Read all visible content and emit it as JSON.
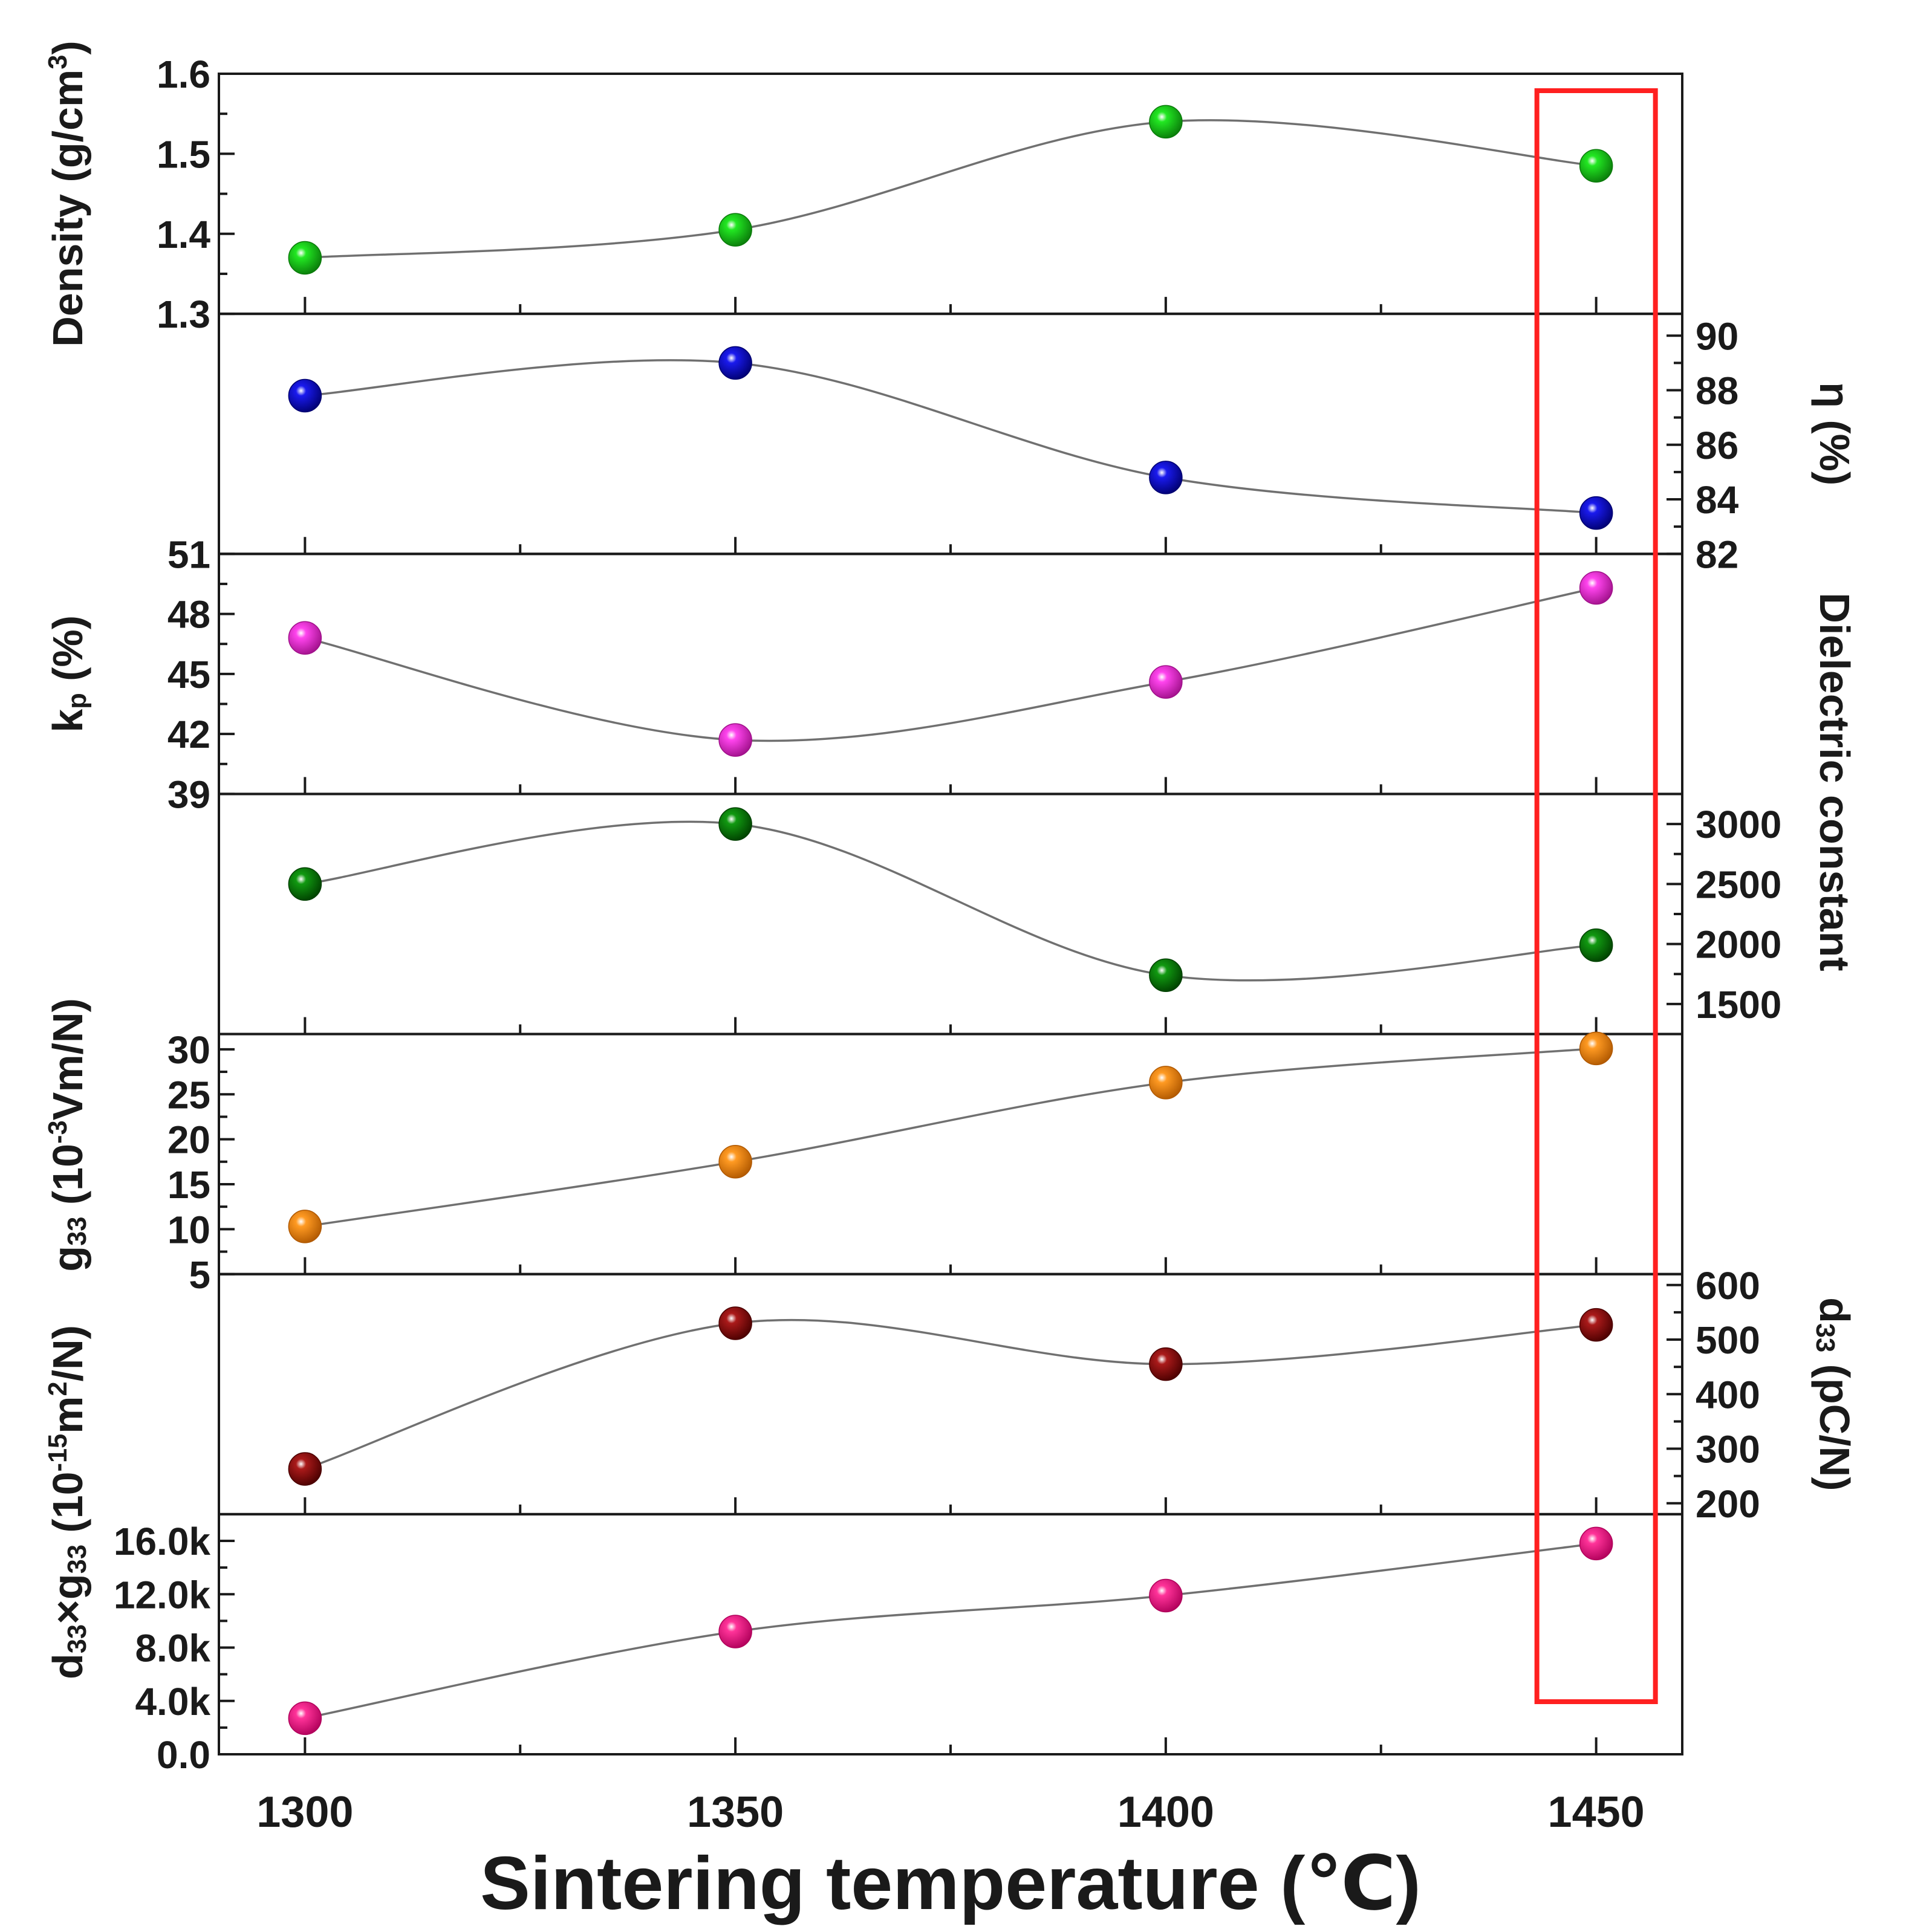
{
  "chart_data": {
    "type": "scatter",
    "x": [
      1300,
      1350,
      1400,
      1450
    ],
    "x_ticks": [
      "1300",
      "1350",
      "1400",
      "1450"
    ],
    "xlabel": "Sintering temperature (℃)",
    "xlim": [
      1290,
      1460
    ],
    "highlight": {
      "x": 1450,
      "color": "#ff2020"
    },
    "panels": [
      {
        "id": "density",
        "side": "left",
        "label_parts": [
          {
            "t": "Density (g/cm"
          },
          {
            "t": "3",
            "s": "sup"
          },
          {
            "t": ")"
          }
        ],
        "ylim": [
          1.3,
          1.6
        ],
        "ticks": [
          1.3,
          1.4,
          1.5,
          1.6
        ],
        "tick_labels": [
          "1.3",
          "1.4",
          "1.5",
          "1.6"
        ],
        "minor": [
          1.35,
          1.45,
          1.55
        ],
        "values": [
          1.37,
          1.405,
          1.54,
          1.485
        ],
        "color": "#22e822",
        "dark": "#0a7a0a"
      },
      {
        "id": "eta",
        "side": "right",
        "label_parts": [
          {
            "t": "η (%)"
          }
        ],
        "ylim": [
          82,
          90.8
        ],
        "ticks": [
          82,
          84,
          86,
          88,
          90
        ],
        "tick_labels": [
          "82",
          "84",
          "86",
          "88",
          "90"
        ],
        "minor": [
          83,
          85,
          87,
          89
        ],
        "values": [
          87.8,
          89,
          84.8,
          83.5
        ],
        "color": "#1a1aee",
        "dark": "#000070"
      },
      {
        "id": "kp",
        "side": "left",
        "label_parts": [
          {
            "t": "k"
          },
          {
            "t": "p",
            "s": "sub"
          },
          {
            "t": " (%)"
          }
        ],
        "ylim": [
          39,
          51
        ],
        "ticks": [
          39,
          42,
          45,
          48,
          51
        ],
        "tick_labels": [
          "39",
          "42",
          "45",
          "48",
          "51"
        ],
        "minor": [
          40.5,
          43.5,
          46.5,
          49.5
        ],
        "values": [
          46.8,
          41.7,
          44.6,
          49.3
        ],
        "color": "#ff44ee",
        "dark": "#a0108a"
      },
      {
        "id": "dielectric",
        "side": "right",
        "label_parts": [
          {
            "t": "Dielectric constant"
          }
        ],
        "label_center": "span",
        "ylim": [
          1250,
          3250
        ],
        "ticks": [
          1500,
          2000,
          2500,
          3000
        ],
        "tick_labels": [
          "1500",
          "2000",
          "2500",
          "3000"
        ],
        "minor": [
          1750,
          2250,
          2750
        ],
        "values": [
          2500,
          3000,
          1740,
          1990
        ],
        "color": "#119911",
        "dark": "#004000"
      },
      {
        "id": "g33",
        "side": "left",
        "label_parts": [
          {
            "t": "g"
          },
          {
            "t": "33",
            "s": "sub"
          },
          {
            "t": " (10"
          },
          {
            "t": "-3",
            "s": "sup"
          },
          {
            "t": "Vm/N)"
          }
        ],
        "label_center": "span",
        "ylim": [
          5,
          31.7
        ],
        "ticks": [
          5,
          10,
          15,
          20,
          25,
          30
        ],
        "tick_labels": [
          "5",
          "10",
          "15",
          "20",
          "25",
          "30"
        ],
        "minor": [
          7.5,
          12.5,
          17.5,
          22.5,
          27.5
        ],
        "values": [
          10.3,
          17.5,
          26.3,
          30.1
        ],
        "color": "#ff9a22",
        "dark": "#b05800"
      },
      {
        "id": "d33",
        "side": "right",
        "label_parts": [
          {
            "t": "d"
          },
          {
            "t": "33",
            "s": "sub"
          },
          {
            "t": " (pC/N)"
          }
        ],
        "ylim": [
          180,
          620
        ],
        "ticks": [
          200,
          300,
          400,
          500,
          600
        ],
        "tick_labels": [
          "200",
          "300",
          "400",
          "500",
          "600"
        ],
        "minor": [
          250,
          350,
          450,
          550
        ],
        "values": [
          263,
          530,
          455,
          527
        ],
        "color": "#aa1a1a",
        "dark": "#4a0000"
      },
      {
        "id": "fom",
        "side": "left",
        "label_parts": [
          {
            "t": "d"
          },
          {
            "t": "33",
            "s": "sub"
          },
          {
            "t": "×g"
          },
          {
            "t": "33",
            "s": "sub"
          },
          {
            "t": " (10"
          },
          {
            "t": "-15",
            "s": "sup"
          },
          {
            "t": "m"
          },
          {
            "t": "2",
            "s": "sup"
          },
          {
            "t": "/N)"
          }
        ],
        "label_center": "span",
        "ylim": [
          0,
          18000
        ],
        "ticks": [
          0,
          4000,
          8000,
          12000,
          16000
        ],
        "tick_labels": [
          "0.0",
          "4.0k",
          "8.0k",
          "12.0k",
          "16.0k"
        ],
        "minor": [
          2000,
          6000,
          10000,
          14000
        ],
        "values": [
          2700,
          9200,
          11900,
          15800
        ],
        "color": "#ff3399",
        "dark": "#b0005a"
      }
    ]
  }
}
